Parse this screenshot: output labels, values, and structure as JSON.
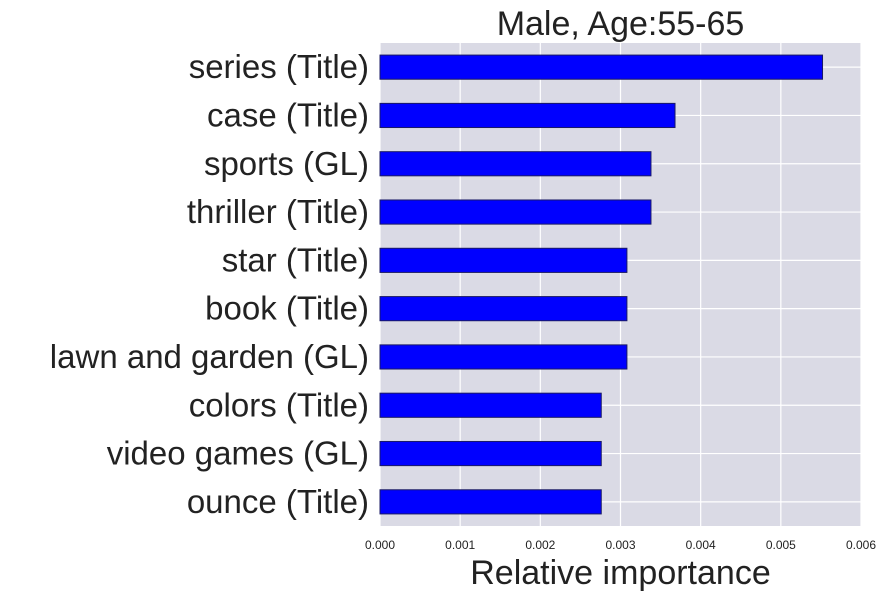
{
  "chart_data": {
    "type": "bar",
    "orientation": "horizontal",
    "title": "Male, Age:55-65",
    "xlabel": "Relative importance",
    "ylabel": "",
    "xlim": [
      0.0,
      0.006
    ],
    "x_ticks": [
      0.0,
      0.001,
      0.002,
      0.003,
      0.004,
      0.005,
      0.006
    ],
    "x_tick_labels": [
      "0.000",
      "0.001",
      "0.002",
      "0.003",
      "0.004",
      "0.005",
      "0.006"
    ],
    "grid": true,
    "categories": [
      "series (Title)",
      "case (Title)",
      "sports (GL)",
      "thriller (Title)",
      "star (Title)",
      "book (Title)",
      "lawn and garden (GL) ",
      "colors (Title)",
      "video games (GL)",
      "ounce (Title)"
    ],
    "values": [
      0.00552,
      0.00368,
      0.00338,
      0.00338,
      0.00308,
      0.00308,
      0.00308,
      0.00276,
      0.00276,
      0.00276
    ],
    "colors": {
      "bar": "#0000ff",
      "bar_edge": "#1a1a66",
      "plot_background": "#dadae5",
      "grid": "#ffffff"
    }
  }
}
